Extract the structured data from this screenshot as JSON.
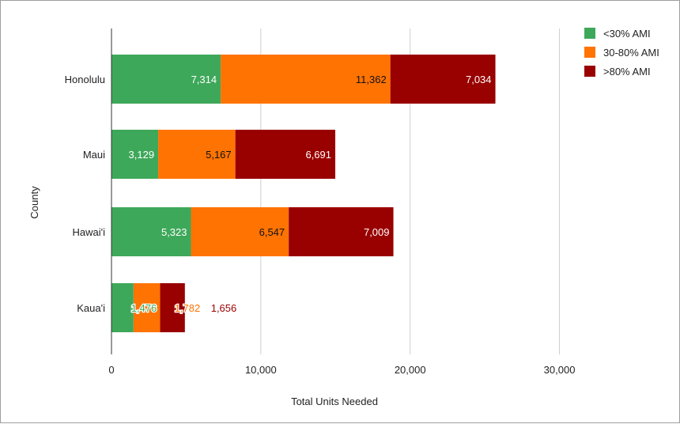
{
  "chart_data": {
    "type": "bar",
    "orientation": "horizontal",
    "stacked": true,
    "categories": [
      "Honolulu",
      "Maui",
      "Hawai'i",
      "Kaua'i"
    ],
    "series": [
      {
        "name": "<30% AMI",
        "color": "#3ea85a",
        "values": [
          7314,
          3129,
          5323,
          1476
        ],
        "labels": [
          "7,314",
          "3,129",
          "5,323",
          "1,476"
        ]
      },
      {
        "name": "30-80% AMI",
        "color": "#ff7302",
        "values": [
          11362,
          5167,
          6547,
          1782
        ],
        "labels": [
          "11,362",
          "5,167",
          "6,547",
          "1,782"
        ]
      },
      {
        "name": ">80% AMI",
        "color": "#990000",
        "values": [
          7034,
          6691,
          7009,
          1656
        ],
        "labels": [
          "7,034",
          "6,691",
          "7,009",
          "1,656"
        ]
      }
    ],
    "xlabel": "Total Units Needed",
    "ylabel": "County",
    "xlim": [
      0,
      30000
    ],
    "x_ticks": [
      0,
      10000,
      20000,
      30000
    ],
    "x_tick_labels": [
      "0",
      "10,000",
      "20,000",
      "30,000"
    ],
    "grid": true,
    "legend": "top-right"
  }
}
